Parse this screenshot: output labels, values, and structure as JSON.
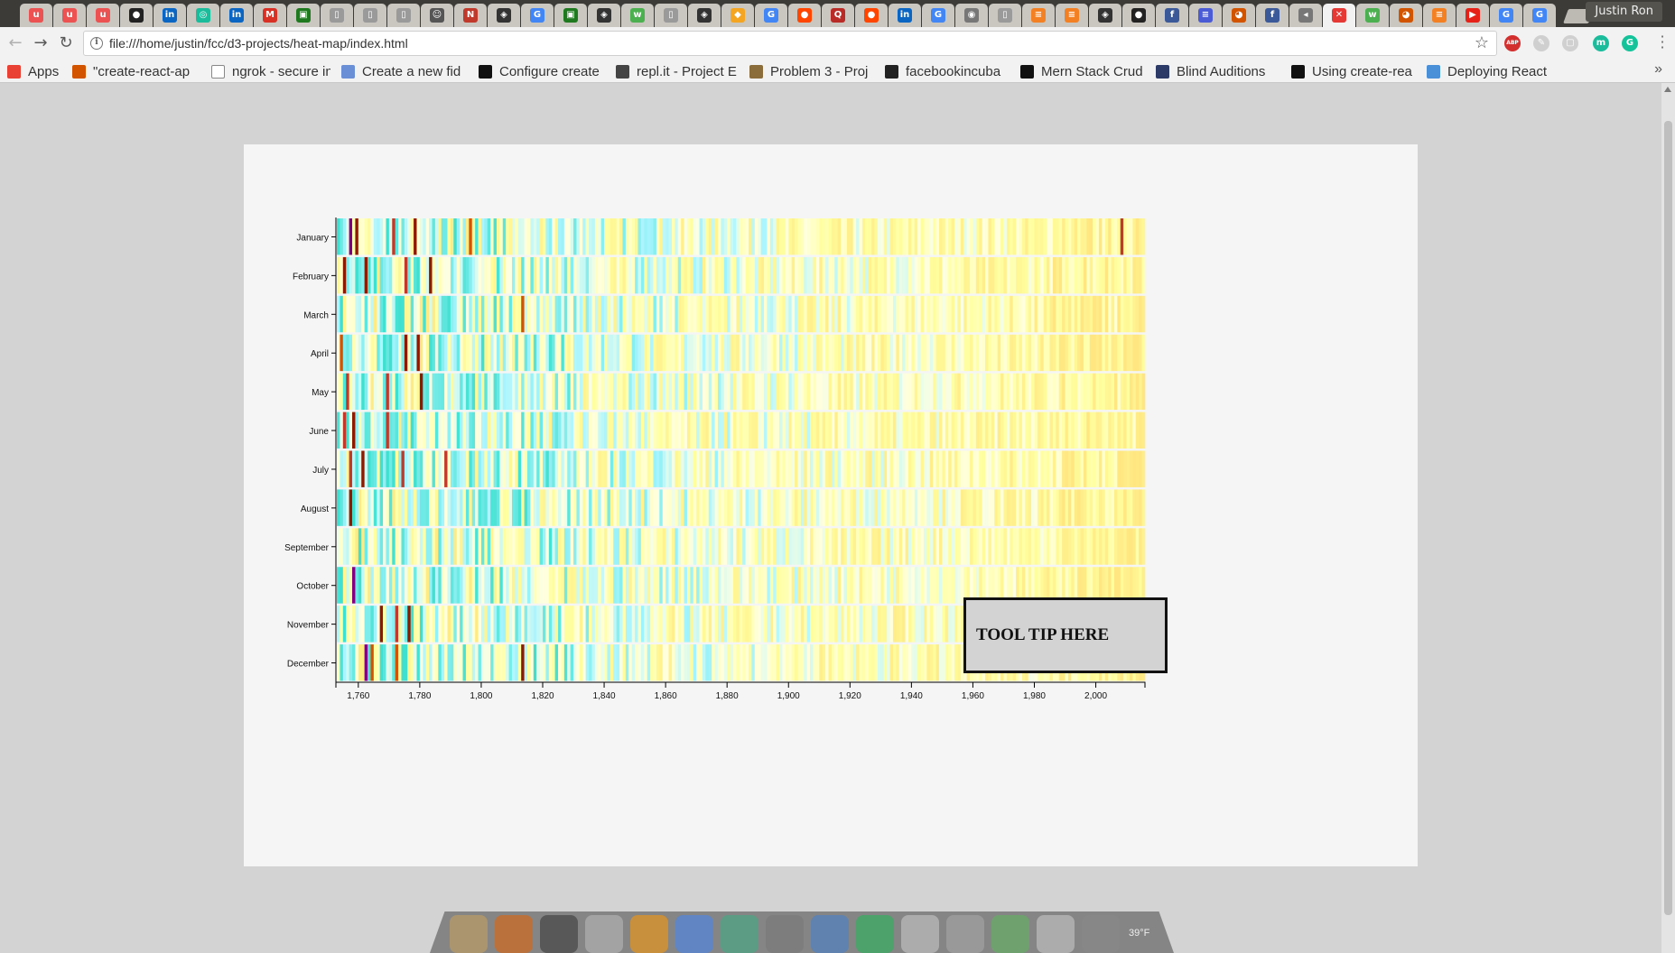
{
  "browser": {
    "tabs": [
      {
        "icon": "udemy-icon",
        "color": "#ec5252",
        "glyph": "u"
      },
      {
        "icon": "udemy-icon",
        "color": "#ec5252",
        "glyph": "u"
      },
      {
        "icon": "udemy-icon",
        "color": "#ec5252",
        "glyph": "u"
      },
      {
        "icon": "github-icon",
        "color": "#222222",
        "glyph": "●"
      },
      {
        "icon": "linkedin-icon",
        "color": "#0a66c2",
        "glyph": "in"
      },
      {
        "icon": "codeschool-icon",
        "color": "#1abc9c",
        "glyph": "◎"
      },
      {
        "icon": "linkedin-icon",
        "color": "#0a66c2",
        "glyph": "in"
      },
      {
        "icon": "gmail-icon",
        "color": "#d93025",
        "glyph": "M"
      },
      {
        "icon": "terminal-icon",
        "color": "#1f7a1f",
        "glyph": "▣"
      },
      {
        "icon": "page-icon",
        "color": "#9a9a9a",
        "glyph": "▯"
      },
      {
        "icon": "page-icon",
        "color": "#9a9a9a",
        "glyph": "▯"
      },
      {
        "icon": "page-icon",
        "color": "#9a9a9a",
        "glyph": "▯"
      },
      {
        "icon": "profile-icon",
        "color": "#555555",
        "glyph": "☺"
      },
      {
        "icon": "news-icon",
        "color": "#c0392b",
        "glyph": "N"
      },
      {
        "icon": "codepen-icon",
        "color": "#333333",
        "glyph": "◈"
      },
      {
        "icon": "google-icon",
        "color": "#4285f4",
        "glyph": "G"
      },
      {
        "icon": "terminal-icon",
        "color": "#1f7a1f",
        "glyph": "▣"
      },
      {
        "icon": "codepen-icon",
        "color": "#333333",
        "glyph": "◈"
      },
      {
        "icon": "w3-icon",
        "color": "#4caf50",
        "glyph": "w"
      },
      {
        "icon": "page-icon",
        "color": "#9a9a9a",
        "glyph": "▯"
      },
      {
        "icon": "codepen-icon",
        "color": "#333333",
        "glyph": "◈"
      },
      {
        "icon": "sketch-icon",
        "color": "#f4a623",
        "glyph": "◆"
      },
      {
        "icon": "google-icon",
        "color": "#4285f4",
        "glyph": "G"
      },
      {
        "icon": "reddit-icon",
        "color": "#ff4500",
        "glyph": "●"
      },
      {
        "icon": "quora-icon",
        "color": "#b92b27",
        "glyph": "Q"
      },
      {
        "icon": "reddit-icon",
        "color": "#ff4500",
        "glyph": "●"
      },
      {
        "icon": "linkedin-icon",
        "color": "#0a66c2",
        "glyph": "in"
      },
      {
        "icon": "google-icon",
        "color": "#4285f4",
        "glyph": "G"
      },
      {
        "icon": "owl-icon",
        "color": "#777777",
        "glyph": "◉"
      },
      {
        "icon": "page-icon",
        "color": "#9a9a9a",
        "glyph": "▯"
      },
      {
        "icon": "stackoverflow-icon",
        "color": "#f48024",
        "glyph": "≡"
      },
      {
        "icon": "stackoverflow-icon",
        "color": "#f48024",
        "glyph": "≡"
      },
      {
        "icon": "codepen-icon",
        "color": "#333333",
        "glyph": "◈"
      },
      {
        "icon": "github-icon",
        "color": "#222222",
        "glyph": "●"
      },
      {
        "icon": "facebook-icon",
        "color": "#3b5998",
        "glyph": "f"
      },
      {
        "icon": "docs-icon",
        "color": "#4b5bd6",
        "glyph": "≡"
      },
      {
        "icon": "chrome-store-icon",
        "color": "#d35400",
        "glyph": "◕"
      },
      {
        "icon": "facebook-icon",
        "color": "#3b5998",
        "glyph": "f"
      },
      {
        "icon": "audio-icon",
        "color": "#777777",
        "glyph": "◂"
      },
      {
        "icon": "error-icon",
        "color": "#e53935",
        "glyph": "✕",
        "active": true
      },
      {
        "icon": "w3-icon",
        "color": "#4caf50",
        "glyph": "w"
      },
      {
        "icon": "chrome-store-icon",
        "color": "#d35400",
        "glyph": "◕"
      },
      {
        "icon": "stackoverflow-icon",
        "color": "#f48024",
        "glyph": "≡"
      },
      {
        "icon": "youtube-icon",
        "color": "#e62117",
        "glyph": "▶"
      },
      {
        "icon": "google-icon",
        "color": "#4285f4",
        "glyph": "G"
      },
      {
        "icon": "google-icon",
        "color": "#4285f4",
        "glyph": "G"
      }
    ],
    "profile_name": "Justin Ron",
    "url": "file:///home/justin/fcc/d3-projects/heat-map/index.html",
    "bookmarks": [
      {
        "label": "Apps",
        "icon": "apps-grid-icon",
        "color": "#e94235"
      },
      {
        "label": "\"create-react-ap",
        "icon": "chrome-store-icon",
        "color": "#d35400"
      },
      {
        "label": "ngrok - secure in",
        "icon": "page-icon",
        "color": "#ffffff"
      },
      {
        "label": "Create a new fid",
        "icon": "cloud-icon",
        "color": "#6a8fd6"
      },
      {
        "label": "Configure create",
        "icon": "medium-icon",
        "color": "#111111"
      },
      {
        "label": "repl.it - Project E",
        "icon": "replit-icon",
        "color": "#444444"
      },
      {
        "label": "Problem 3 - Proj",
        "icon": "euler-icon",
        "color": "#8a6d3b"
      },
      {
        "label": "facebookincuba",
        "icon": "github-icon",
        "color": "#222222"
      },
      {
        "label": "Mern Stack Crud",
        "icon": "medium-icon",
        "color": "#111111"
      },
      {
        "label": "Blind Auditions",
        "icon": "gi-icon",
        "color": "#2b3a67"
      },
      {
        "label": "Using create-rea",
        "icon": "medium-icon",
        "color": "#111111"
      },
      {
        "label": "Deploying React",
        "icon": "bird-icon",
        "color": "#4a90d9"
      }
    ],
    "extensions": [
      {
        "icon": "adblock-icon",
        "color": "#d32f2f",
        "glyph": "ABP"
      },
      {
        "icon": "feather-icon",
        "color": "#cfcfcf",
        "glyph": "✎"
      },
      {
        "icon": "extension-icon",
        "color": "#d0d0d0",
        "glyph": "▢"
      },
      {
        "icon": "mercury-icon",
        "color": "#1abc9c",
        "glyph": "m"
      },
      {
        "icon": "grammarly-icon",
        "color": "#15c39a",
        "glyph": "G"
      }
    ]
  },
  "tooltip": {
    "text": "TOOL TIP HERE"
  },
  "dock": {
    "icons": [
      "anchor-icon",
      "firefox-icon",
      "terminal-icon",
      "disks-icon",
      "sublime-text-icon",
      "chrome-icon",
      "slack-icon",
      "files-icon",
      "messaging-icon",
      "spotify-icon",
      "text-editor-icon",
      "trash-icon",
      "globe-icon",
      "mail-icon",
      "weather-icon"
    ],
    "weather_text": "39°F"
  },
  "chart_data": {
    "type": "heatmap",
    "title": "",
    "xlabel": "",
    "ylabel": "",
    "x_range": [
      1753,
      2015
    ],
    "x_ticks": [
      "1,760",
      "1,780",
      "1,800",
      "1,820",
      "1,840",
      "1,860",
      "1,880",
      "1,900",
      "1,920",
      "1,940",
      "1,960",
      "1,980",
      "2,000"
    ],
    "y_categories": [
      "January",
      "February",
      "March",
      "April",
      "May",
      "June",
      "July",
      "August",
      "September",
      "October",
      "November",
      "December"
    ],
    "color_scale": [
      "#40e0d0",
      "#aaf5ff",
      "#ffffe0",
      "#ffff99",
      "#ffe07a",
      "#fdae61",
      "#d73027",
      "#8b1a00",
      "#800080"
    ],
    "hot_spots": [
      {
        "year": 1757,
        "month": 1,
        "color": "#800080"
      },
      {
        "year": 1759,
        "month": 1,
        "color": "#8b1a00"
      },
      {
        "year": 1771,
        "month": 1,
        "color": "#c0392b"
      },
      {
        "year": 1778,
        "month": 1,
        "color": "#8b1a00"
      },
      {
        "year": 1796,
        "month": 1,
        "color": "#d35400"
      },
      {
        "year": 2008,
        "month": 1,
        "color": "#c0392b"
      },
      {
        "year": 1755,
        "month": 2,
        "color": "#8b1a00"
      },
      {
        "year": 1762,
        "month": 2,
        "color": "#8b1a00"
      },
      {
        "year": 1775,
        "month": 2,
        "color": "#c0392b"
      },
      {
        "year": 1783,
        "month": 2,
        "color": "#8b1a00"
      },
      {
        "year": 1813,
        "month": 3,
        "color": "#d35400"
      },
      {
        "year": 1754,
        "month": 4,
        "color": "#d35400"
      },
      {
        "year": 1775,
        "month": 4,
        "color": "#8b1a00"
      },
      {
        "year": 1779,
        "month": 4,
        "color": "#8b1a00"
      },
      {
        "year": 1756,
        "month": 5,
        "color": "#c0392b"
      },
      {
        "year": 1769,
        "month": 5,
        "color": "#c0392b"
      },
      {
        "year": 1780,
        "month": 5,
        "color": "#8b1a00"
      },
      {
        "year": 1755,
        "month": 6,
        "color": "#c0392b"
      },
      {
        "year": 1758,
        "month": 6,
        "color": "#8b1a00"
      },
      {
        "year": 1769,
        "month": 6,
        "color": "#c0392b"
      },
      {
        "year": 1757,
        "month": 7,
        "color": "#c0392b"
      },
      {
        "year": 1761,
        "month": 7,
        "color": "#8b1a00"
      },
      {
        "year": 1774,
        "month": 7,
        "color": "#c0392b"
      },
      {
        "year": 1788,
        "month": 7,
        "color": "#c0392b"
      },
      {
        "year": 1757,
        "month": 8,
        "color": "#8b1a00"
      },
      {
        "year": 1758,
        "month": 10,
        "color": "#800080"
      },
      {
        "year": 1767,
        "month": 11,
        "color": "#8b1a00"
      },
      {
        "year": 1772,
        "month": 11,
        "color": "#c0392b"
      },
      {
        "year": 1776,
        "month": 11,
        "color": "#8b1a00"
      },
      {
        "year": 1762,
        "month": 12,
        "color": "#800080"
      },
      {
        "year": 1764,
        "month": 12,
        "color": "#d35400"
      },
      {
        "year": 1772,
        "month": 12,
        "color": "#d35400"
      },
      {
        "year": 1813,
        "month": 12,
        "color": "#8b1a00"
      }
    ]
  }
}
